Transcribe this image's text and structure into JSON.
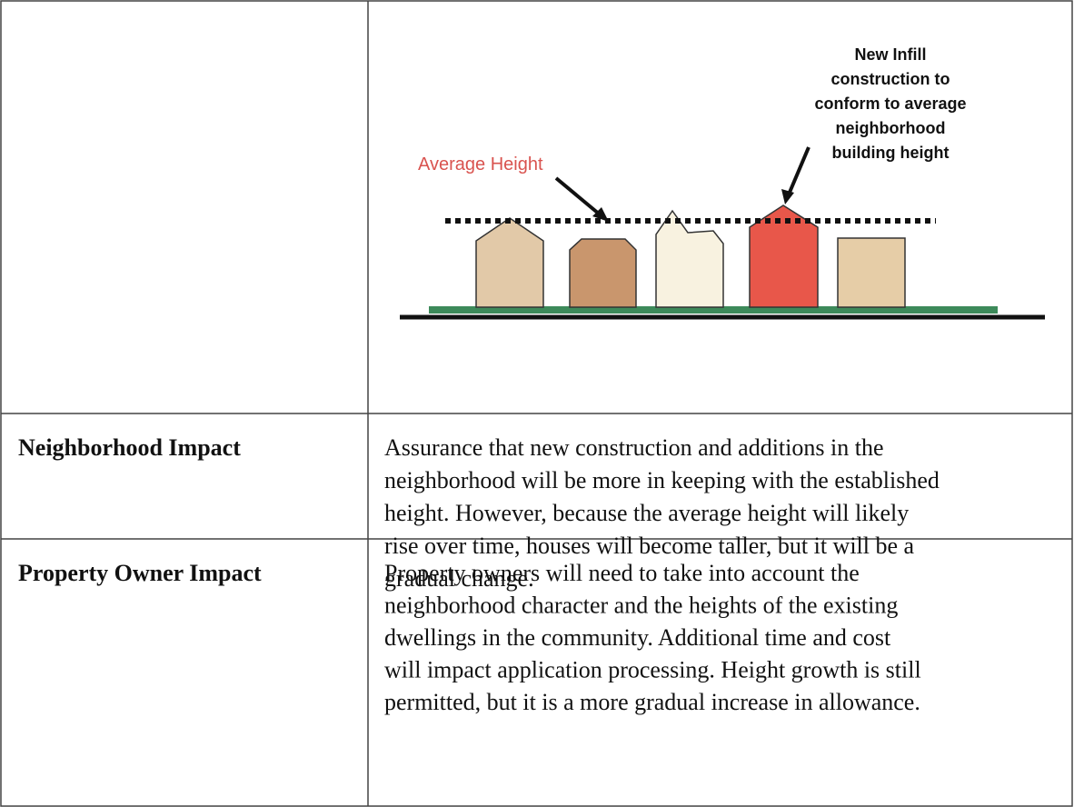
{
  "table": {
    "rows": [
      {
        "label": null,
        "diagram": {
          "average_label": "Average Height",
          "infill_label": [
            "New Infill",
            "construction to",
            "conform to average",
            "neighborhood",
            "building height"
          ]
        }
      },
      {
        "label": "Neighborhood Impact",
        "text": [
          "Assurance that new construction and additions in the",
          "neighborhood will be more in keeping with the established",
          "height.  However, because the average height will likely",
          "rise over time, houses will become taller, but it will be a",
          "gradual change."
        ]
      },
      {
        "label": "Property Owner Impact",
        "text": [
          "Property owners will need to take into account the",
          "neighborhood character and the heights of the existing",
          "dwellings in the community.  Additional time and cost",
          "will impact application processing.  Height growth is still",
          "permitted, but it is a more gradual increase in allowance."
        ]
      }
    ]
  }
}
